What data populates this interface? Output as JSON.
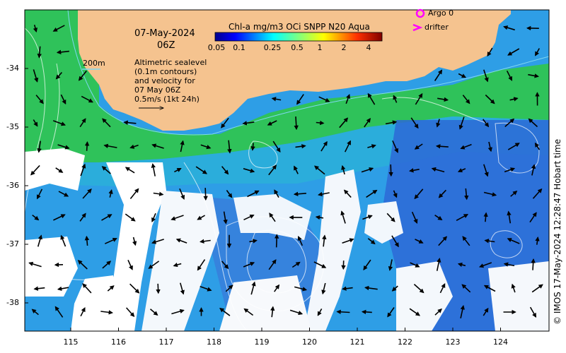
{
  "map": {
    "date": "07-May-2024",
    "hour": "06Z",
    "colorbar": {
      "title": "Chl-a mg/m3 OCi SNPP N20 Aqua",
      "ticks": [
        "0.05",
        "0.1",
        "0.25",
        "0.5",
        "1",
        "2",
        "4"
      ]
    },
    "legend": {
      "argo": "Argo 0",
      "drifter": "drifter",
      "contour_depth": "200m"
    },
    "info_lines": [
      "Altimetric sealevel",
      "(0.1m contours)",
      "and velocity for",
      "07 May 06Z",
      "0.5m/s (1kt 24h)"
    ],
    "lat_ticks": [
      "-34",
      "-35",
      "-36",
      "-37",
      "-38"
    ],
    "lon_ticks": [
      "115",
      "116",
      "117",
      "118",
      "119",
      "120",
      "121",
      "122",
      "123",
      "124"
    ],
    "credit": "© IMOS 17-May-2024 12:28:47 Hobart time",
    "colors": {
      "land": "#f5c38f",
      "ocean_high_chl": "#1fbf3f",
      "ocean_mid_chl": "#2aa7e8",
      "ocean_low_chl": "#2a6ae0",
      "cloud_gap": "#ffffff",
      "argo_marker": "#ff00ff",
      "drifter_marker": "#ff00ff"
    }
  }
}
